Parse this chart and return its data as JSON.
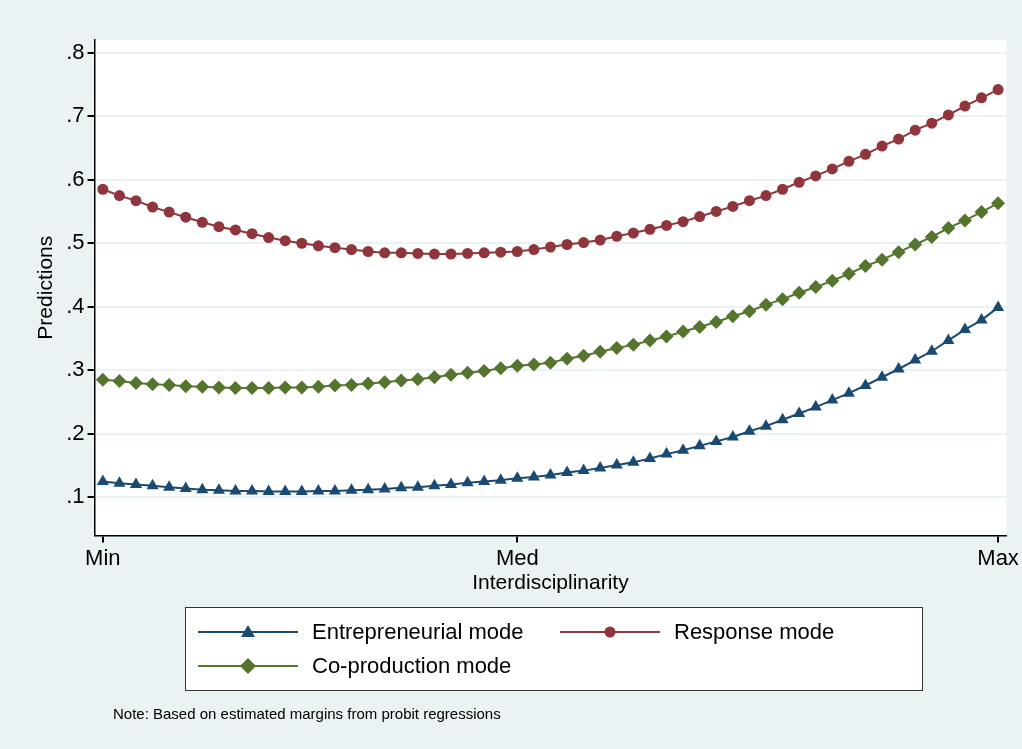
{
  "chart_data": {
    "type": "line",
    "xlabel": "Interdisciplinarity",
    "ylabel": "Predictions",
    "categories": [
      "Min",
      null,
      null,
      null,
      null,
      null,
      null,
      null,
      null,
      null,
      null,
      null,
      null,
      null,
      null,
      null,
      null,
      null,
      null,
      null,
      null,
      null,
      null,
      null,
      null,
      "Med",
      null,
      null,
      null,
      null,
      null,
      null,
      null,
      null,
      null,
      null,
      null,
      null,
      null,
      null,
      null,
      null,
      null,
      null,
      null,
      null,
      null,
      null,
      null,
      null,
      null,
      null,
      null,
      null,
      "Max"
    ],
    "ylim": [
      0.04,
      0.82
    ],
    "yticks": [
      {
        "value": 0.1,
        "label": ".1"
      },
      {
        "value": 0.2,
        "label": ".2"
      },
      {
        "value": 0.3,
        "label": ".3"
      },
      {
        "value": 0.4,
        "label": ".4"
      },
      {
        "value": 0.5,
        "label": ".5"
      },
      {
        "value": 0.6,
        "label": ".6"
      },
      {
        "value": 0.7,
        "label": ".7"
      },
      {
        "value": 0.8,
        "label": ".8"
      }
    ],
    "grid": "y",
    "legend": "bottom",
    "line_style": "solid",
    "series": [
      {
        "name": "Entrepreneurial mode",
        "color": "#1a4a72",
        "marker": "triangle",
        "values": [
          0.125,
          0.122,
          0.12,
          0.118,
          0.116,
          0.114,
          0.112,
          0.111,
          0.11,
          0.11,
          0.109,
          0.109,
          0.109,
          0.11,
          0.11,
          0.111,
          0.112,
          0.113,
          0.115,
          0.116,
          0.118,
          0.12,
          0.123,
          0.125,
          0.127,
          0.13,
          0.132,
          0.135,
          0.139,
          0.142,
          0.146,
          0.151,
          0.155,
          0.161,
          0.168,
          0.174,
          0.181,
          0.188,
          0.195,
          0.204,
          0.212,
          0.222,
          0.232,
          0.242,
          0.253,
          0.264,
          0.276,
          0.289,
          0.302,
          0.316,
          0.33,
          0.347,
          0.364,
          0.379,
          0.399
        ]
      },
      {
        "name": "Response mode",
        "color": "#90353b",
        "marker": "circle",
        "values": [
          0.585,
          0.575,
          0.567,
          0.557,
          0.549,
          0.541,
          0.533,
          0.526,
          0.521,
          0.515,
          0.509,
          0.504,
          0.5,
          0.496,
          0.493,
          0.49,
          0.487,
          0.485,
          0.485,
          0.484,
          0.483,
          0.483,
          0.484,
          0.485,
          0.486,
          0.487,
          0.49,
          0.494,
          0.498,
          0.501,
          0.505,
          0.511,
          0.516,
          0.522,
          0.528,
          0.534,
          0.542,
          0.55,
          0.558,
          0.567,
          0.575,
          0.585,
          0.596,
          0.606,
          0.617,
          0.629,
          0.64,
          0.653,
          0.664,
          0.678,
          0.689,
          0.702,
          0.716,
          0.729,
          0.742
        ]
      },
      {
        "name": "Co-production mode",
        "color": "#55752f",
        "marker": "diamond",
        "values": [
          0.285,
          0.283,
          0.28,
          0.278,
          0.277,
          0.275,
          0.274,
          0.273,
          0.272,
          0.272,
          0.272,
          0.273,
          0.273,
          0.274,
          0.276,
          0.277,
          0.279,
          0.281,
          0.284,
          0.286,
          0.289,
          0.293,
          0.296,
          0.299,
          0.303,
          0.307,
          0.309,
          0.312,
          0.318,
          0.323,
          0.329,
          0.335,
          0.34,
          0.347,
          0.353,
          0.361,
          0.368,
          0.376,
          0.385,
          0.393,
          0.403,
          0.412,
          0.422,
          0.431,
          0.441,
          0.452,
          0.464,
          0.474,
          0.486,
          0.498,
          0.51,
          0.524,
          0.536,
          0.549,
          0.563
        ]
      }
    ],
    "annotations": [
      "Note: Based on estimated margins from probit regressions"
    ]
  }
}
